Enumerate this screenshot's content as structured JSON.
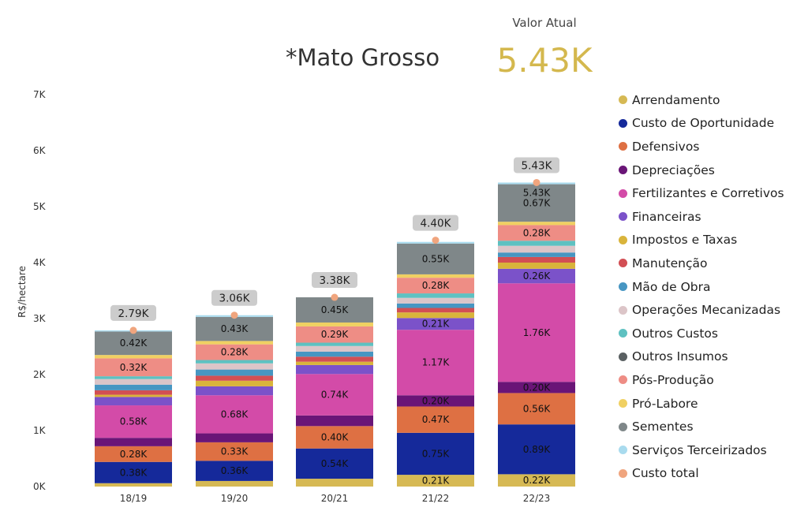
{
  "header": {
    "title": "*Mato Grosso",
    "kpi_label": "Valor Atual",
    "kpi_value": "5.43K"
  },
  "chart_data": {
    "type": "bar",
    "stacked": true,
    "ylabel": "R$/hectare",
    "ylim": [
      0,
      7000
    ],
    "yticks": [
      0,
      1000,
      2000,
      3000,
      4000,
      5000,
      6000,
      7000
    ],
    "ytick_labels": [
      "0K",
      "1K",
      "2K",
      "3K",
      "4K",
      "5K",
      "6K",
      "7K"
    ],
    "categories": [
      "18/19",
      "19/20",
      "20/21",
      "21/22",
      "22/23"
    ],
    "series": [
      {
        "name": "Arrendamento",
        "color": "#d6b954",
        "values": [
          60,
          100,
          140,
          210,
          220
        ],
        "labels": [
          "",
          "",
          "",
          "0.21K",
          "0.22K"
        ]
      },
      {
        "name": "Custo de Oportunidade",
        "color": "#15299a",
        "values": [
          380,
          360,
          540,
          750,
          890
        ],
        "labels": [
          "0.38K",
          "0.36K",
          "0.54K",
          "0.75K",
          "0.89K"
        ]
      },
      {
        "name": "Defensivos",
        "color": "#de7043",
        "values": [
          280,
          330,
          400,
          470,
          560
        ],
        "labels": [
          "0.28K",
          "0.33K",
          "0.40K",
          "0.47K",
          "0.56K"
        ]
      },
      {
        "name": "Depreciações",
        "color": "#6a1577",
        "values": [
          150,
          160,
          190,
          200,
          200
        ],
        "labels": [
          "",
          "",
          "",
          "0.20K",
          "0.20K"
        ]
      },
      {
        "name": "Fertilizantes e Corretivos",
        "color": "#d34ba8",
        "values": [
          580,
          680,
          740,
          1170,
          1760
        ],
        "labels": [
          "0.58K",
          "0.68K",
          "0.74K",
          "1.17K",
          "1.76K"
        ]
      },
      {
        "name": "Financeiras",
        "color": "#7b52c9",
        "values": [
          150,
          160,
          160,
          210,
          260
        ],
        "labels": [
          "",
          "",
          "",
          "0.21K",
          "0.26K"
        ]
      },
      {
        "name": "Impostos e Taxas",
        "color": "#d9b43b",
        "values": [
          40,
          100,
          60,
          100,
          110
        ],
        "labels": [
          "",
          "",
          "",
          "",
          ""
        ]
      },
      {
        "name": "Manutenção",
        "color": "#d24f54",
        "values": [
          80,
          90,
          90,
          80,
          100
        ],
        "labels": [
          "",
          "",
          "",
          "",
          ""
        ]
      },
      {
        "name": "Mão de Obra",
        "color": "#4796c2",
        "values": [
          100,
          110,
          90,
          80,
          80
        ],
        "labels": [
          "",
          "",
          "",
          "",
          ""
        ]
      },
      {
        "name": "Operações Mecanizadas",
        "color": "#dcc5c8",
        "values": [
          100,
          110,
          100,
          100,
          120
        ],
        "labels": [
          "",
          "",
          "",
          "",
          ""
        ]
      },
      {
        "name": "Outros Custos",
        "color": "#5ec1c1",
        "values": [
          50,
          60,
          60,
          80,
          90
        ],
        "labels": [
          "",
          "",
          "",
          "",
          ""
        ]
      },
      {
        "name": "Outros Insumos",
        "color": "#5a6062",
        "values": [
          0,
          0,
          0,
          0,
          0
        ],
        "labels": [
          "",
          "",
          "",
          "",
          ""
        ]
      },
      {
        "name": "Pós-Produção",
        "color": "#ee8d85",
        "values": [
          320,
          280,
          290,
          280,
          280
        ],
        "labels": [
          "0.32K",
          "0.28K",
          "0.29K",
          "0.28K",
          "0.28K"
        ]
      },
      {
        "name": "Pró-Labore",
        "color": "#f0d062",
        "values": [
          60,
          60,
          70,
          60,
          60
        ],
        "labels": [
          "",
          "",
          "",
          "",
          ""
        ]
      },
      {
        "name": "Sementes",
        "color": "#7f8789",
        "values": [
          420,
          430,
          450,
          550,
          670
        ],
        "labels": [
          "0.42K",
          "0.43K",
          "0.45K",
          "0.55K",
          "0.67K"
        ]
      },
      {
        "name": "Serviços Terceirizados",
        "color": "#a9dbee",
        "values": [
          20,
          30,
          0,
          30,
          30
        ],
        "labels": [
          "",
          "",
          "",
          "",
          ""
        ]
      }
    ],
    "total": {
      "name": "Custo total",
      "color": "#f0a57e",
      "values": [
        2790,
        3060,
        3380,
        4400,
        5430
      ],
      "labels": [
        "2.79K",
        "3.06K",
        "3.38K",
        "4.40K",
        "5.43K"
      ],
      "inner_label": "5.43K"
    },
    "legend_position": "right",
    "grid": false
  }
}
